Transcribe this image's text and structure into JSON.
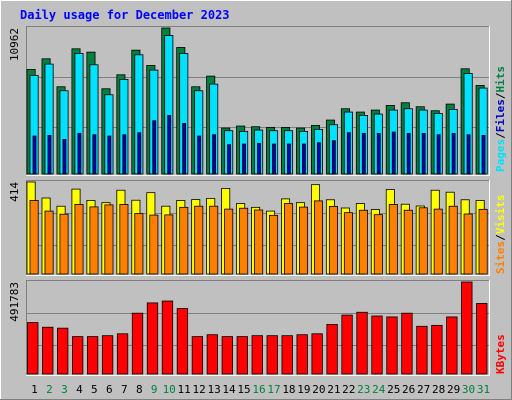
{
  "chart_data": {
    "type": "bar",
    "title": "Daily usage for December 2023",
    "categories": [
      "1",
      "2",
      "3",
      "4",
      "5",
      "6",
      "7",
      "8",
      "9",
      "10",
      "11",
      "12",
      "13",
      "14",
      "15",
      "16",
      "17",
      "18",
      "19",
      "20",
      "21",
      "22",
      "23",
      "24",
      "25",
      "26",
      "27",
      "28",
      "29",
      "30",
      "31"
    ],
    "weekend_days": [
      "2",
      "3",
      "9",
      "10",
      "16",
      "17",
      "23",
      "24",
      "30",
      "31"
    ],
    "panels": [
      {
        "name": "hits-files-pages",
        "max_label": "10962",
        "ymax": 10962,
        "grid": true,
        "series": [
          {
            "name": "Hits",
            "color": "#008040",
            "values": [
              7850,
              8650,
              6550,
              9400,
              9150,
              6400,
              7450,
              9300,
              8150,
              10962,
              9500,
              6550,
              7350,
              3450,
              3600,
              3550,
              3500,
              3500,
              3450,
              3650,
              4050,
              4900,
              4650,
              4800,
              5150,
              5350,
              5050,
              4750,
              5250,
              7900,
              6650
            ]
          },
          {
            "name": "Files",
            "color": "#00e0ff",
            "values": [
              7400,
              8250,
              6250,
              9050,
              8200,
              5950,
              7100,
              8950,
              7800,
              10400,
              9050,
              6250,
              6750,
              3250,
              3200,
              3300,
              3250,
              3250,
              3200,
              3350,
              3700,
              4650,
              4400,
              4500,
              4800,
              4900,
              4800,
              4550,
              4850,
              7550,
              6450
            ]
          },
          {
            "name": "Pages",
            "color": "#0000c0",
            "values": [
              2850,
              2900,
              2600,
              3050,
              2950,
              2850,
              2950,
              3100,
              4000,
              4400,
              3800,
              2850,
              2950,
              2200,
              2250,
              2300,
              2250,
              2250,
              2250,
              2350,
              2500,
              3100,
              3050,
              3050,
              3150,
              3050,
              3050,
              2950,
              3050,
              2950,
              2900
            ]
          }
        ]
      },
      {
        "name": "visits-sites",
        "max_label": "414",
        "ymax": 414,
        "grid": true,
        "series": [
          {
            "name": "Visits",
            "color": "#ffff00",
            "values": [
              414,
              342,
              305,
              382,
              331,
              321,
              377,
              332,
              366,
              305,
              331,
              335,
              340,
              385,
              317,
              300,
              283,
              338,
              321,
              402,
              334,
              297,
              317,
              290,
              380,
              314,
              306,
              377,
              368,
              334,
              331
            ]
          },
          {
            "name": "Sites",
            "color": "#ff8000",
            "values": [
              331,
              283,
              269,
              313,
              302,
              311,
              313,
              272,
              265,
              266,
              300,
              305,
              305,
              292,
              296,
              288,
              264,
              317,
              301,
              329,
              304,
              276,
              287,
              267,
              313,
              287,
              298,
              292,
              305,
              270,
              291
            ]
          }
        ]
      },
      {
        "name": "kbytes",
        "max_label": "491783",
        "ymax": 491783,
        "grid": true,
        "series": [
          {
            "name": "KBytes",
            "color": "#ff0000",
            "values": [
              275000,
              250000,
              245000,
              200000,
              200000,
              205000,
              215000,
              325000,
              380000,
              390000,
              350000,
              200000,
              210000,
              200000,
              200000,
              205000,
              205000,
              205000,
              210000,
              215000,
              265000,
              315000,
              330000,
              310000,
              305000,
              325000,
              255000,
              260000,
              305000,
              491783,
              377000
            ]
          }
        ]
      }
    ]
  }
}
